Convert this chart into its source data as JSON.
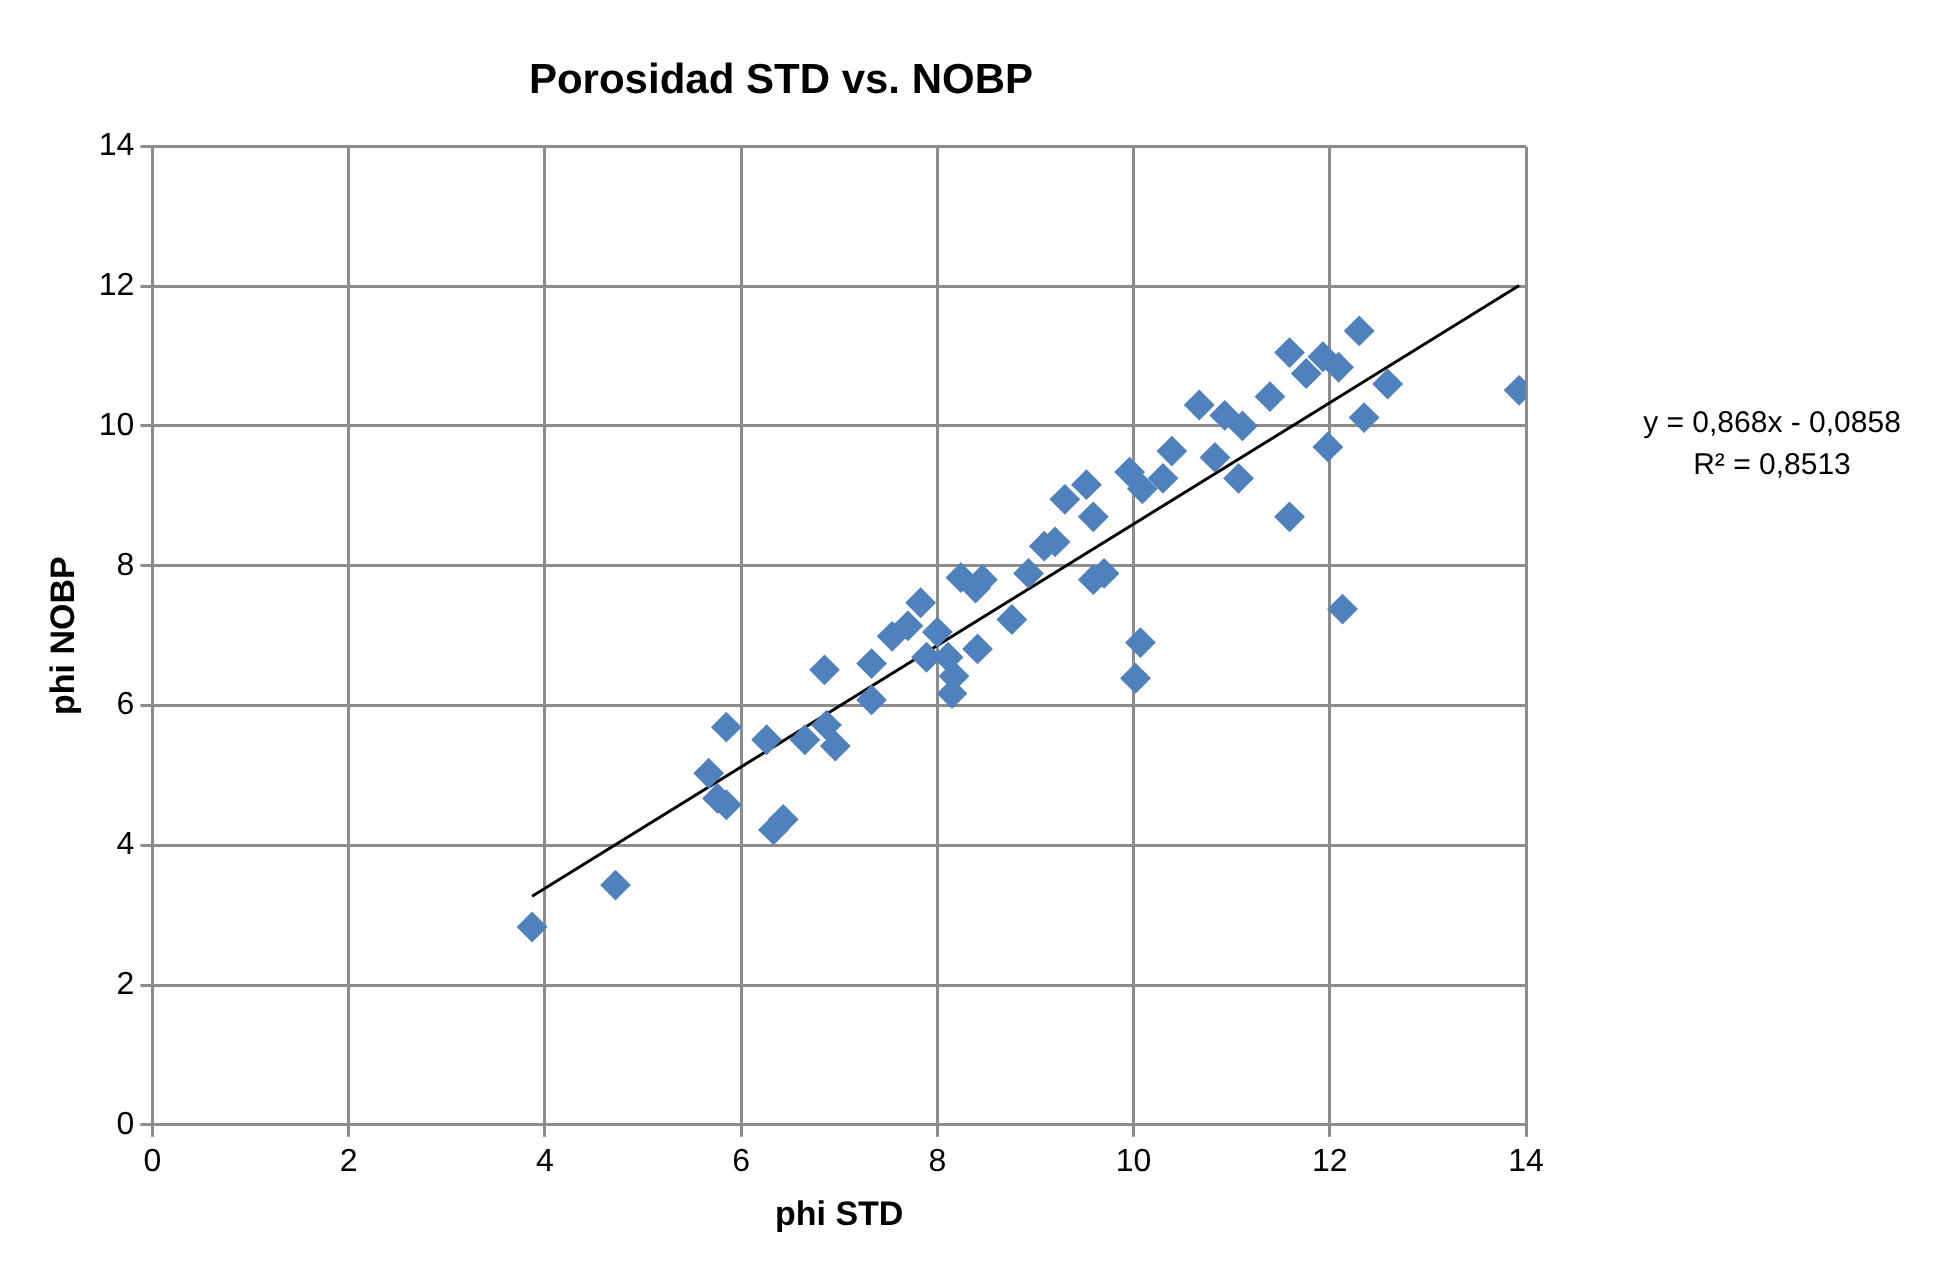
{
  "chart_data": {
    "type": "scatter",
    "title": "Porosidad STD vs. NOBP",
    "xlabel": "phi STD",
    "ylabel": "phi NOBP",
    "xlim": [
      0,
      14
    ],
    "xticks": [
      0,
      2,
      4,
      6,
      8,
      10,
      12,
      14
    ],
    "ylim": [
      0,
      14
    ],
    "yticks": [
      0,
      2,
      4,
      6,
      8,
      10,
      12,
      14
    ],
    "grid": true,
    "legend": false,
    "marker": "diamond",
    "annotations": [
      "y = 0,868x - 0,0858",
      "R² = 0,8513"
    ],
    "series": [
      {
        "type": "scatter",
        "color": "#4f81bd",
        "x": [
          3.87,
          4.72,
          5.67,
          5.85,
          5.76,
          5.85,
          6.26,
          6.33,
          6.43,
          6.65,
          6.85,
          6.87,
          6.96,
          7.33,
          7.33,
          7.54,
          7.7,
          7.83,
          7.89,
          8.0,
          8.11,
          8.15,
          8.17,
          8.24,
          8.39,
          8.46,
          8.41,
          8.76,
          8.93,
          9.09,
          9.2,
          9.3,
          9.52,
          9.59,
          9.59,
          9.7,
          9.96,
          10.02,
          10.07,
          10.09,
          10.3,
          10.39,
          10.67,
          10.83,
          10.93,
          11.07,
          11.11,
          11.39,
          11.59,
          11.59,
          11.76,
          11.93,
          11.98,
          12.09,
          12.13,
          12.3,
          12.35,
          12.59,
          13.93
        ],
        "values": [
          2.83,
          3.43,
          5.03,
          5.69,
          4.67,
          4.58,
          5.51,
          4.22,
          4.37,
          5.51,
          6.51,
          5.72,
          5.42,
          6.08,
          6.6,
          6.99,
          7.14,
          7.47,
          6.69,
          7.05,
          6.69,
          6.17,
          6.42,
          7.83,
          7.68,
          7.8,
          6.81,
          7.23,
          7.89,
          8.28,
          8.34,
          8.95,
          9.16,
          8.7,
          7.8,
          7.89,
          9.34,
          6.39,
          6.9,
          9.1,
          9.25,
          9.64,
          10.3,
          9.55,
          10.15,
          9.25,
          10.0,
          10.42,
          11.05,
          8.7,
          10.75,
          10.99,
          9.7,
          10.84,
          7.38,
          11.36,
          10.12,
          10.6,
          10.51
        ]
      },
      {
        "type": "line",
        "color": "#000000",
        "marker": "none",
        "x": [
          3.87,
          13.93
        ],
        "values": [
          3.27,
          12.01
        ]
      }
    ]
  }
}
